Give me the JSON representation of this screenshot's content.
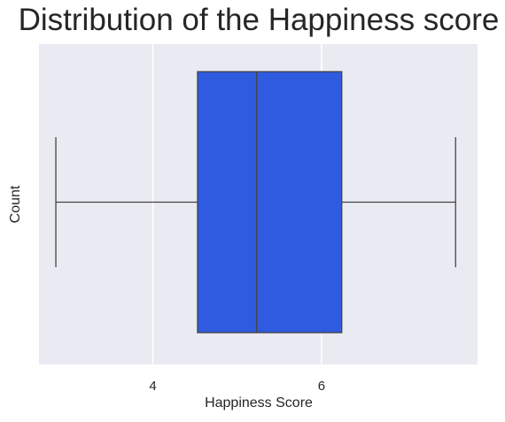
{
  "chart_data": {
    "type": "boxplot",
    "title": "Distribution of the Happiness score",
    "xlabel": "Happiness Score",
    "ylabel": "Count",
    "xlim": [
      2.65,
      7.85
    ],
    "x_ticks": [
      4,
      6
    ],
    "x_tick_labels": [
      "4",
      "6"
    ],
    "grid": true,
    "box": {
      "whisker_low": 2.85,
      "q1": 4.53,
      "median": 5.23,
      "q3": 6.24,
      "whisker_high": 7.59
    },
    "colors": {
      "box_fill": "#2e5be0",
      "line": "#444444",
      "plot_background": "#eaeaf2",
      "grid": "#ffffff"
    }
  }
}
